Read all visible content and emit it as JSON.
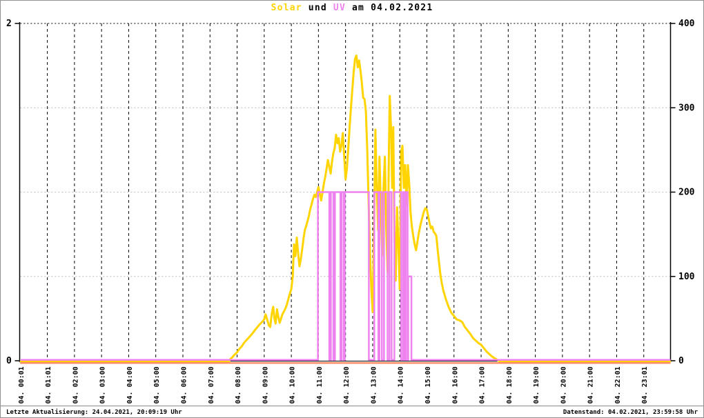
{
  "title": {
    "solar": "Solar",
    "und": " und ",
    "uv": "UV",
    "rest": " am 04.02.2021",
    "full": "Solar und UV am 04.02.2021"
  },
  "footer": {
    "left": "Letzte Aktualisierung: 24.04.2021, 20:09:19 Uhr",
    "right": "Datenstand: 04.02.2021, 23:59:58 Uhr"
  },
  "colors": {
    "solar_line": "#ffd400",
    "uv_line": "#ee82ee",
    "zero_line": "#ff8c69",
    "grid_horizontal": "#bcbcbc",
    "grid_vertical": "#000000",
    "axis": "#000000",
    "text": "#000000",
    "background": "#ffffff",
    "border": "#909090"
  },
  "chart_data": {
    "type": "line",
    "title": "Solar und UV am 04.02.2021",
    "date": "04.02.2021",
    "grid": {
      "horizontal_dotted_at_right_values": [
        100,
        200,
        300
      ],
      "top_dotted_at_right_value": 400,
      "vertical_dashed": "every hour"
    },
    "left_axis": {
      "min": 0,
      "max": 2,
      "tick_labels": [
        "2",
        "0"
      ],
      "tick_values": [
        2,
        0
      ]
    },
    "right_axis": {
      "min": 0,
      "max": 400,
      "tick_labels": [
        "400",
        "300",
        "200",
        "100",
        "0"
      ],
      "tick_values": [
        400,
        300,
        200,
        100,
        0
      ]
    },
    "x_axis": {
      "tick_label_rotation_deg": -90,
      "hours_span": [
        0,
        24
      ]
    },
    "x_tick_labels": [
      "04. 00:01",
      "04. 01:01",
      "04. 02:00",
      "04. 03:00",
      "04. 04:00",
      "04. 05:00",
      "04. 06:00",
      "04. 07:00",
      "04. 08:00",
      "04. 09:00",
      "04. 10:00",
      "04. 11:00",
      "04. 12:00",
      "04. 13:00",
      "04. 14:00",
      "04. 15:00",
      "04. 16:00",
      "04. 17:00",
      "04. 18:00",
      "04. 19:00",
      "04. 20:00",
      "04. 21:00",
      "04. 22:01",
      "04. 23:01"
    ],
    "series": [
      {
        "name": "Solar",
        "axis": "right",
        "color": "#ffd400",
        "peak_value": 362,
        "points": [
          [
            0.02,
            0
          ],
          [
            7.7,
            0
          ],
          [
            7.75,
            2
          ],
          [
            7.82,
            4
          ],
          [
            7.9,
            7
          ],
          [
            8.0,
            10
          ],
          [
            8.08,
            14
          ],
          [
            8.17,
            17
          ],
          [
            8.25,
            21
          ],
          [
            8.33,
            24
          ],
          [
            8.42,
            27
          ],
          [
            8.5,
            30
          ],
          [
            8.58,
            33
          ],
          [
            8.67,
            37
          ],
          [
            8.75,
            40
          ],
          [
            8.83,
            43
          ],
          [
            8.92,
            46
          ],
          [
            9.0,
            49
          ],
          [
            9.05,
            55
          ],
          [
            9.1,
            50
          ],
          [
            9.17,
            42
          ],
          [
            9.22,
            40
          ],
          [
            9.28,
            56
          ],
          [
            9.33,
            64
          ],
          [
            9.38,
            50
          ],
          [
            9.42,
            44
          ],
          [
            9.47,
            61
          ],
          [
            9.52,
            52
          ],
          [
            9.57,
            45
          ],
          [
            9.62,
            50
          ],
          [
            9.67,
            55
          ],
          [
            9.72,
            58
          ],
          [
            9.78,
            62
          ],
          [
            9.83,
            66
          ],
          [
            9.88,
            72
          ],
          [
            9.93,
            78
          ],
          [
            10.0,
            85
          ],
          [
            10.05,
            100
          ],
          [
            10.1,
            138
          ],
          [
            10.15,
            124
          ],
          [
            10.2,
            146
          ],
          [
            10.25,
            128
          ],
          [
            10.3,
            112
          ],
          [
            10.35,
            120
          ],
          [
            10.4,
            132
          ],
          [
            10.45,
            145
          ],
          [
            10.5,
            155
          ],
          [
            10.55,
            160
          ],
          [
            10.6,
            166
          ],
          [
            10.65,
            172
          ],
          [
            10.7,
            180
          ],
          [
            10.75,
            186
          ],
          [
            10.8,
            192
          ],
          [
            10.85,
            197
          ],
          [
            10.9,
            194
          ],
          [
            10.95,
            200
          ],
          [
            11.0,
            206
          ],
          [
            11.05,
            198
          ],
          [
            11.1,
            190
          ],
          [
            11.15,
            200
          ],
          [
            11.2,
            210
          ],
          [
            11.25,
            218
          ],
          [
            11.3,
            228
          ],
          [
            11.35,
            238
          ],
          [
            11.4,
            230
          ],
          [
            11.45,
            222
          ],
          [
            11.5,
            236
          ],
          [
            11.55,
            246
          ],
          [
            11.6,
            252
          ],
          [
            11.65,
            268
          ],
          [
            11.7,
            258
          ],
          [
            11.75,
            264
          ],
          [
            11.8,
            248
          ],
          [
            11.85,
            256
          ],
          [
            11.9,
            270
          ],
          [
            11.95,
            242
          ],
          [
            12.0,
            215
          ],
          [
            12.05,
            228
          ],
          [
            12.1,
            252
          ],
          [
            12.15,
            278
          ],
          [
            12.2,
            300
          ],
          [
            12.25,
            322
          ],
          [
            12.3,
            342
          ],
          [
            12.35,
            358
          ],
          [
            12.4,
            362
          ],
          [
            12.45,
            348
          ],
          [
            12.5,
            356
          ],
          [
            12.55,
            344
          ],
          [
            12.6,
            330
          ],
          [
            12.65,
            312
          ],
          [
            12.7,
            310
          ],
          [
            12.75,
            296
          ],
          [
            12.8,
            250
          ],
          [
            12.85,
            190
          ],
          [
            12.9,
            130
          ],
          [
            12.95,
            85
          ],
          [
            13.0,
            58
          ],
          [
            13.05,
            150
          ],
          [
            13.1,
            274
          ],
          [
            13.15,
            210
          ],
          [
            13.2,
            155
          ],
          [
            13.25,
            242
          ],
          [
            13.3,
            185
          ],
          [
            13.35,
            125
          ],
          [
            13.4,
            205
          ],
          [
            13.45,
            242
          ],
          [
            13.5,
            160
          ],
          [
            13.55,
            105
          ],
          [
            13.6,
            250
          ],
          [
            13.63,
            314
          ],
          [
            13.68,
            272
          ],
          [
            13.72,
            205
          ],
          [
            13.76,
            277
          ],
          [
            13.8,
            155
          ],
          [
            13.85,
            95
          ],
          [
            13.9,
            182
          ],
          [
            13.95,
            135
          ],
          [
            14.0,
            85
          ],
          [
            14.05,
            248
          ],
          [
            14.1,
            255
          ],
          [
            14.15,
            205
          ],
          [
            14.2,
            232
          ],
          [
            14.25,
            185
          ],
          [
            14.3,
            232
          ],
          [
            14.35,
            208
          ],
          [
            14.4,
            175
          ],
          [
            14.45,
            158
          ],
          [
            14.5,
            147
          ],
          [
            14.55,
            138
          ],
          [
            14.6,
            131
          ],
          [
            14.65,
            141
          ],
          [
            14.7,
            151
          ],
          [
            14.75,
            159
          ],
          [
            14.8,
            166
          ],
          [
            14.85,
            172
          ],
          [
            14.9,
            178
          ],
          [
            14.95,
            181
          ],
          [
            15.0,
            179
          ],
          [
            15.05,
            171
          ],
          [
            15.1,
            163
          ],
          [
            15.15,
            157
          ],
          [
            15.2,
            159
          ],
          [
            15.25,
            153
          ],
          [
            15.3,
            151
          ],
          [
            15.35,
            148
          ],
          [
            15.4,
            131
          ],
          [
            15.45,
            116
          ],
          [
            15.5,
            102
          ],
          [
            15.55,
            92
          ],
          [
            15.6,
            84
          ],
          [
            15.7,
            73
          ],
          [
            15.8,
            64
          ],
          [
            15.9,
            57
          ],
          [
            16.0,
            53
          ],
          [
            16.1,
            49
          ],
          [
            16.2,
            48
          ],
          [
            16.3,
            46
          ],
          [
            16.4,
            40
          ],
          [
            16.5,
            36
          ],
          [
            16.6,
            32
          ],
          [
            16.7,
            27
          ],
          [
            16.8,
            24
          ],
          [
            16.9,
            21
          ],
          [
            17.0,
            19
          ],
          [
            17.1,
            15
          ],
          [
            17.2,
            11
          ],
          [
            17.3,
            8
          ],
          [
            17.4,
            5
          ],
          [
            17.5,
            3
          ],
          [
            17.6,
            1
          ],
          [
            17.7,
            0
          ],
          [
            23.97,
            0
          ]
        ]
      },
      {
        "name": "UV",
        "axis": "left",
        "color": "#ee82ee",
        "baseline_value": 0,
        "segments": [
          {
            "start": 10.98,
            "end": 11.4,
            "value": 1
          },
          {
            "start": 11.46,
            "end": 11.55,
            "value": 1
          },
          {
            "start": 11.61,
            "end": 11.81,
            "value": 1
          },
          {
            "start": 11.85,
            "end": 11.93,
            "value": 1
          },
          {
            "start": 11.97,
            "end": 12.86,
            "value": 1
          },
          {
            "start": 13.06,
            "end": 13.21,
            "value": 1
          },
          {
            "start": 13.25,
            "end": 13.34,
            "value": 1
          },
          {
            "start": 13.42,
            "end": 13.55,
            "value": 1
          },
          {
            "start": 13.62,
            "end": 13.7,
            "value": 1
          },
          {
            "start": 13.8,
            "end": 14.05,
            "value": 1
          },
          {
            "start": 14.12,
            "end": 14.18,
            "value": 1
          },
          {
            "start": 14.22,
            "end": 14.29,
            "value": 1
          },
          {
            "start": 14.31,
            "end": 14.43,
            "value": 0.5
          }
        ]
      },
      {
        "name": "zero-line",
        "axis": "right",
        "color": "#ff8c69",
        "constant_value": 0
      }
    ]
  }
}
